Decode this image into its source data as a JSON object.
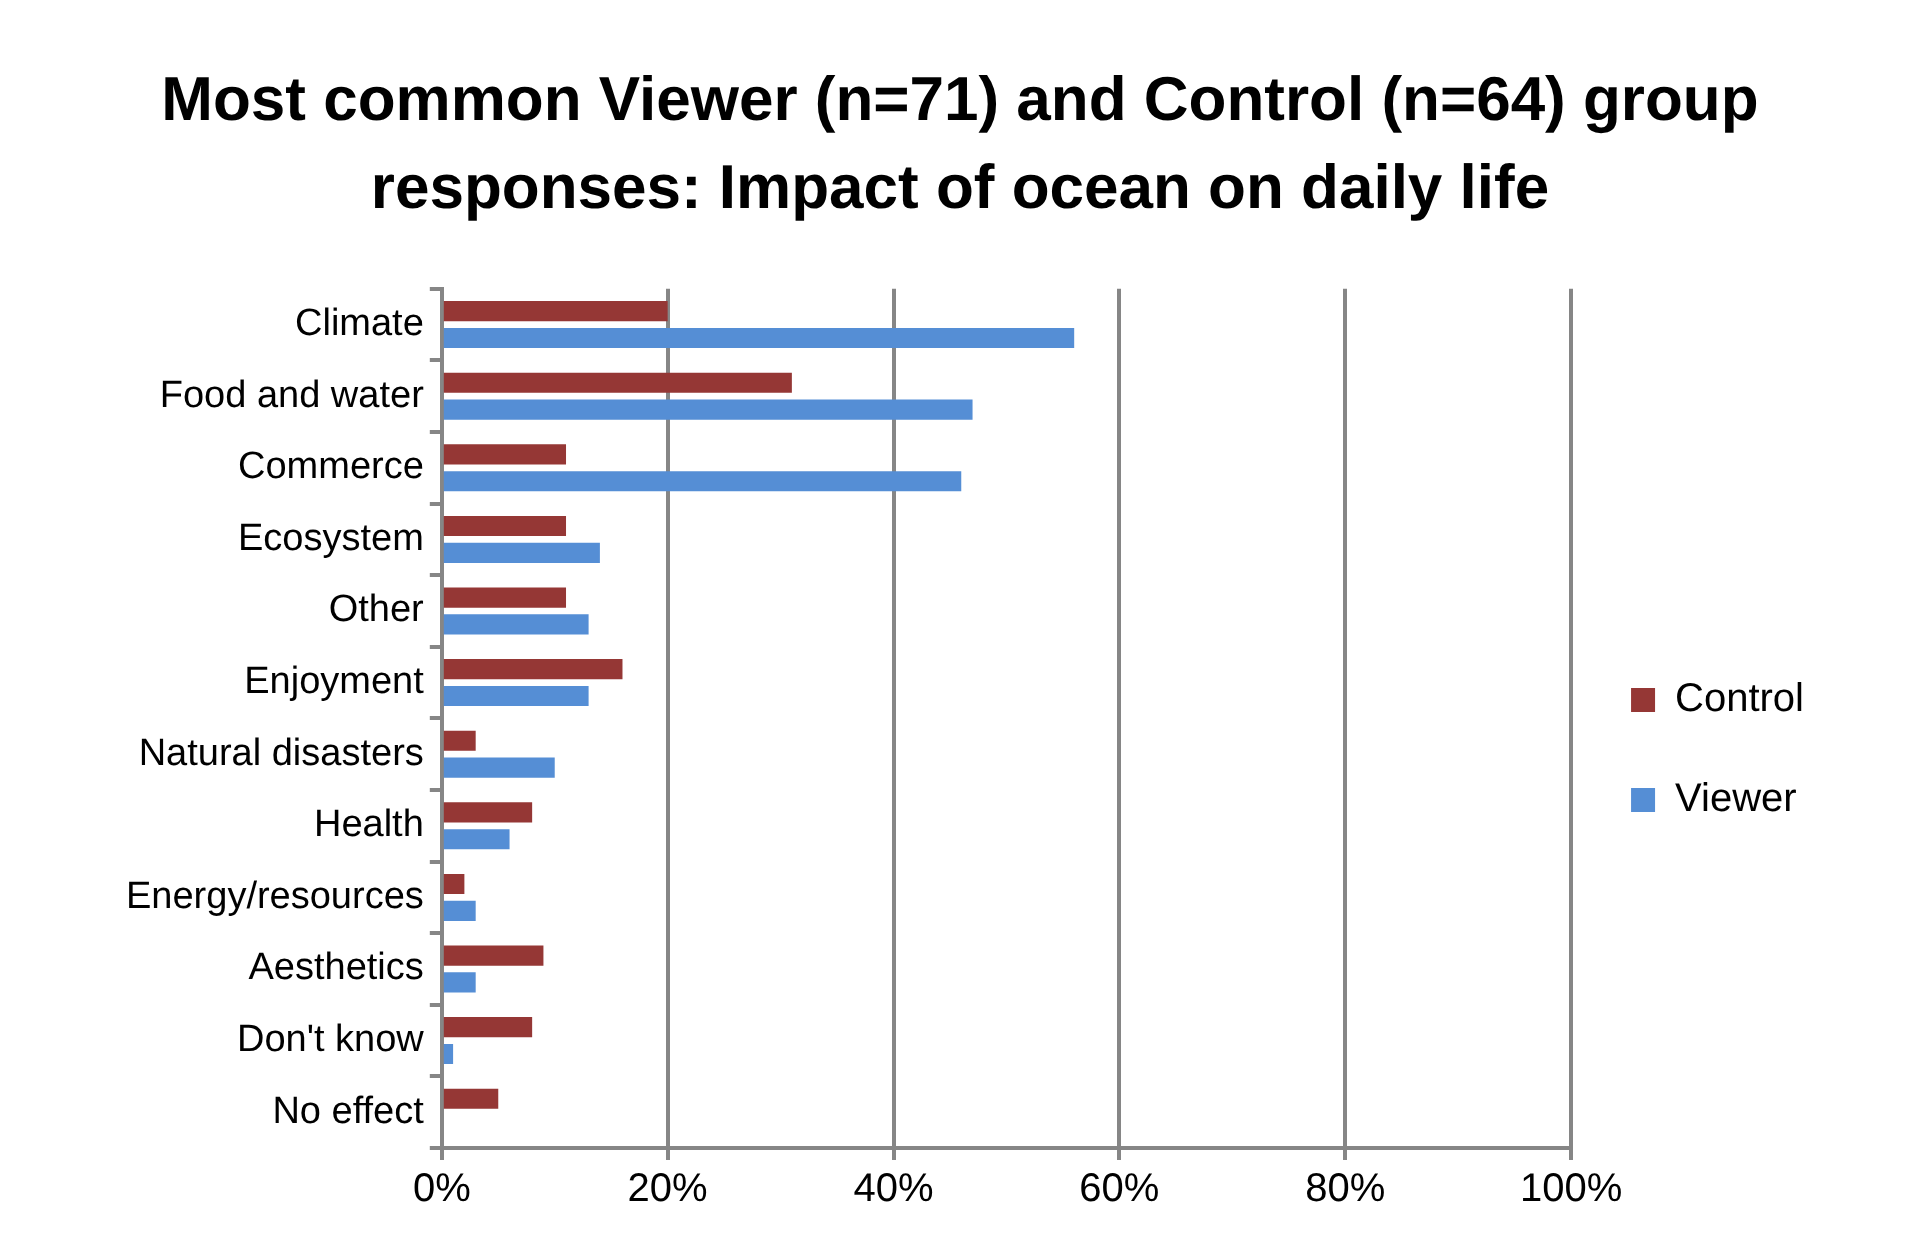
{
  "chart_data": {
    "type": "bar",
    "orientation": "horizontal",
    "title": "Most common Viewer (n=71) and Control (n=64) group responses: Impact of ocean on daily life",
    "categories": [
      "Climate",
      "Food and water",
      "Commerce",
      "Ecosystem",
      "Other",
      "Enjoyment",
      "Natural disasters",
      "Health",
      "Energy/resources",
      "Aesthetics",
      "Don't know",
      "No effect"
    ],
    "series": [
      {
        "name": "Control",
        "color": "#953735",
        "values": [
          20,
          31,
          11,
          11,
          11,
          16,
          3,
          8,
          2,
          9,
          8,
          5
        ]
      },
      {
        "name": "Viewer",
        "color": "#558ed5",
        "values": [
          56,
          47,
          46,
          14,
          13,
          13,
          10,
          6,
          3,
          3,
          1,
          0
        ]
      }
    ],
    "xlim": [
      0,
      100
    ],
    "xticks": [
      {
        "value": 0,
        "label": "0%"
      },
      {
        "value": 20,
        "label": "20%"
      },
      {
        "value": 40,
        "label": "40%"
      },
      {
        "value": 60,
        "label": "60%"
      },
      {
        "value": 80,
        "label": "80%"
      },
      {
        "value": 100,
        "label": "100%"
      }
    ],
    "grid": "x",
    "legend": "right"
  }
}
